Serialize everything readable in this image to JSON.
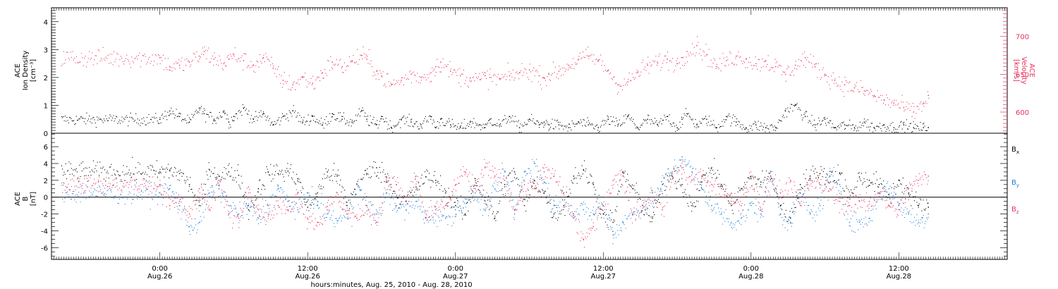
{
  "chart_data": [
    {
      "type": "scatter",
      "panel": "plasma",
      "ylabel_left": [
        "ACE",
        "Ion Density",
        "[cm⁻³]"
      ],
      "ylabel_right": [
        "ACE",
        "Velocity",
        "[km/s]"
      ],
      "ylim_left": [
        0,
        4.5
      ],
      "ylim_right": [
        572,
        738
      ],
      "yticks_left": [
        "0",
        "1",
        "2",
        "3",
        "4"
      ],
      "yticks_right": [
        "600",
        "650",
        "700"
      ],
      "colors": {
        "density": "#000000",
        "velocity": "#e8305a"
      },
      "series": [
        {
          "name": "Ion Density",
          "axis": "left",
          "x_hours": [
            0,
            4,
            8,
            12,
            16,
            18,
            22,
            26,
            28,
            30,
            34,
            38,
            42,
            46,
            50,
            54,
            58,
            62,
            66,
            70,
            74,
            78,
            82,
            84,
            88,
            90,
            94,
            98,
            102,
            106,
            110,
            112,
            114,
            118,
            122,
            126,
            130,
            132,
            134,
            138,
            142,
            146,
            150,
            154,
            156,
            158,
            162,
            166,
            170,
            174,
            178,
            182,
            186,
            190,
            194,
            198,
            202,
            206,
            210,
            212,
            214,
            218,
            222,
            226,
            230,
            234,
            238,
            242,
            246,
            250,
            254,
            258,
            262,
            266,
            270,
            274,
            278,
            282,
            286,
            290,
            294,
            298,
            302,
            306,
            310,
            312
          ],
          "values": [
            0.5,
            0.8,
            0.6,
            0.4,
            0.9,
            0.7,
            0.5,
            0.8,
            0.4,
            0.6,
            0.9,
            0.5,
            0.7,
            0.3,
            0.6,
            0.8,
            0.4,
            0.6,
            0.3,
            0.7,
            0.5,
            0.4,
            0.8,
            0.5,
            0.3,
            0.6,
            0.2,
            0.5,
            0.4,
            0.3,
            0.6,
            0.2,
            0.5,
            0.3,
            0.2,
            0.4,
            0.3,
            0.2,
            0.5,
            0.3,
            0.6,
            0.2,
            0.5,
            0.3,
            0.4,
            0.3,
            0.3,
            0.2,
            0.4,
            0.3,
            0.2,
            0.5,
            0.3,
            0.6,
            0.2,
            0.5,
            0.3,
            0.6,
            0.2,
            0.5,
            0.7,
            0.3,
            0.5,
            0.2,
            0.6,
            0.4,
            0.2,
            0.3,
            0.2,
            0.2,
            0.8,
            1.0,
            0.6,
            0.3,
            0.5,
            0.2,
            0.3,
            0.2,
            0.4,
            0.2,
            0.3,
            0.2,
            0.3,
            0.2,
            0.2,
            0.2
          ]
        },
        {
          "name": "Velocity",
          "axis": "right",
          "x_hours": [
            0,
            4,
            8,
            12,
            16,
            18,
            22,
            26,
            28,
            30,
            34,
            38,
            42,
            46,
            50,
            54,
            58,
            62,
            66,
            70,
            74,
            78,
            82,
            84,
            88,
            90,
            94,
            98,
            102,
            106,
            110,
            112,
            114,
            118,
            122,
            126,
            130,
            132,
            134,
            138,
            142,
            146,
            150,
            154,
            156,
            158,
            162,
            166,
            170,
            174,
            178,
            182,
            186,
            190,
            194,
            198,
            202,
            206,
            210,
            212,
            214,
            218,
            222,
            226,
            230,
            234,
            238,
            242,
            246,
            250,
            254,
            258,
            262,
            266,
            270,
            274,
            278,
            282,
            286,
            290,
            294,
            298,
            302,
            306,
            310,
            312
          ],
          "values": [
            672,
            660,
            662,
            666,
            674,
            680,
            670,
            664,
            670,
            676,
            668,
            662,
            672,
            658,
            642,
            636,
            646,
            638,
            652,
            666,
            660,
            668,
            675,
            670,
            654,
            648,
            636,
            642,
            650,
            646,
            652,
            660,
            666,
            654,
            648,
            645,
            643,
            648,
            646,
            644,
            648,
            652,
            656,
            648,
            645,
            650,
            654,
            662,
            670,
            674,
            668,
            655,
            636,
            640,
            652,
            662,
            666,
            670,
            664,
            672,
            680,
            688,
            676,
            660,
            668,
            674,
            670,
            664,
            668,
            660,
            650,
            662,
            672,
            660,
            650,
            642,
            636,
            632,
            628,
            622,
            616,
            612,
            606,
            600,
            612,
            622
          ]
        }
      ]
    },
    {
      "type": "scatter",
      "panel": "magnetic-field",
      "ylabel": [
        "ACE",
        "B",
        "[nT]"
      ],
      "ylim": [
        -7.4,
        7.6
      ],
      "yticks": [
        "-6",
        "-4",
        "-2",
        "0",
        "2",
        "4",
        "6"
      ],
      "zero_line": true,
      "series": [
        {
          "name": "Bx",
          "label_main": "B",
          "label_sub": "x",
          "color": "#000000",
          "x_hours": [
            0,
            4,
            8,
            12,
            16,
            20,
            24,
            28,
            32,
            36,
            40,
            44,
            48,
            52,
            56,
            60,
            64,
            68,
            72,
            76,
            80,
            84,
            88,
            92,
            96,
            100,
            104,
            108,
            112,
            116,
            120,
            124,
            128,
            132,
            136,
            140,
            144,
            148,
            152,
            156,
            160,
            164,
            168,
            172,
            176,
            180,
            184,
            188,
            192,
            196,
            200,
            204,
            208,
            212,
            216,
            220,
            224,
            228,
            232,
            236,
            240,
            244,
            248,
            252,
            256,
            260,
            264,
            268,
            272,
            276,
            280,
            284,
            288,
            292,
            296,
            300,
            304,
            308,
            312
          ],
          "values": [
            3,
            3.2,
            2.8,
            1.5,
            -1,
            3.3,
            2.5,
            3,
            2.6,
            -1.5,
            1,
            3,
            2.8,
            3.1,
            2.2,
            -1.2,
            0.5,
            3,
            2.5,
            -1,
            1.5,
            2.8,
            3.5,
            2.4,
            0,
            -0.5,
            1.2,
            2.4,
            2,
            0.5,
            -1,
            -2,
            2.2,
            0,
            -2.5,
            1.5,
            3,
            -1,
            2,
            0.5,
            -2,
            -1,
            2.5,
            3.2,
            1.5,
            -2,
            -3,
            3,
            1,
            -1,
            -2.5,
            1.5,
            2.5,
            1.5,
            -1,
            1.8,
            3.5,
            1.5,
            -1,
            1,
            2.2,
            1.8,
            2.5,
            -1,
            -2.5,
            1.5,
            2.5,
            2.8,
            2.5,
            2.8,
            0,
            2.4,
            2,
            1.5,
            0,
            2,
            0.5,
            -1,
            -1.2
          ]
        },
        {
          "name": "By",
          "label_main": "B",
          "label_sub": "y",
          "color": "#1e7fd8",
          "x_hours": [
            0,
            4,
            8,
            12,
            16,
            20,
            24,
            28,
            32,
            36,
            40,
            44,
            48,
            52,
            56,
            60,
            64,
            68,
            72,
            76,
            80,
            84,
            88,
            92,
            96,
            100,
            104,
            108,
            112,
            116,
            120,
            124,
            128,
            132,
            136,
            140,
            144,
            148,
            152,
            156,
            160,
            164,
            168,
            172,
            176,
            180,
            184,
            188,
            192,
            196,
            200,
            204,
            208,
            212,
            216,
            220,
            224,
            228,
            232,
            236,
            240,
            244,
            248,
            252,
            256,
            260,
            264,
            268,
            272,
            276,
            280,
            284,
            288,
            292,
            296,
            300,
            304,
            308,
            312
          ],
          "values": [
            0.5,
            1,
            -1,
            -3.5,
            -3,
            0.5,
            1,
            -1,
            -2,
            -1,
            -2.5,
            -1,
            1,
            -0.5,
            -1.5,
            0.5,
            -1,
            -2,
            -2.8,
            -2,
            1.5,
            -1,
            -2,
            0.5,
            -1,
            -1.5,
            -0.5,
            -2.4,
            -2,
            -2.5,
            -1.5,
            -0.2,
            0.5,
            -1.5,
            1,
            3,
            -2,
            3,
            4,
            1.8,
            -1,
            0.5,
            -2,
            -1.5,
            -2,
            -1,
            -4.5,
            -3,
            -2,
            -1,
            -0.5,
            1.5,
            3,
            4.8,
            3,
            1,
            -1,
            -2,
            -3,
            -2.5,
            -1,
            -2,
            3,
            -2,
            -3,
            0.5,
            -2,
            -1,
            2.5,
            1.5,
            -3,
            -3,
            -2.5,
            0.5,
            1,
            -1,
            -2,
            -3,
            -2
          ]
        },
        {
          "name": "Bz",
          "label_main": "B",
          "label_sub": "z",
          "color": "#e8305a",
          "x_hours": [
            0,
            4,
            8,
            12,
            16,
            20,
            24,
            28,
            32,
            36,
            40,
            44,
            48,
            52,
            56,
            60,
            64,
            68,
            72,
            76,
            80,
            84,
            88,
            92,
            96,
            100,
            104,
            108,
            112,
            116,
            120,
            124,
            128,
            132,
            136,
            140,
            144,
            148,
            152,
            156,
            160,
            164,
            168,
            172,
            176,
            180,
            184,
            188,
            192,
            196,
            200,
            204,
            208,
            212,
            216,
            220,
            224,
            228,
            232,
            236,
            240,
            244,
            248,
            252,
            256,
            260,
            264,
            268,
            272,
            276,
            280,
            284,
            288,
            292,
            296,
            300,
            304,
            308,
            312
          ],
          "values": [
            1.5,
            -1,
            -0.5,
            -2,
            1,
            -1.5,
            2,
            -2,
            -2.5,
            1.2,
            -1.5,
            -2,
            -1,
            -1.5,
            0.5,
            -2.5,
            -3,
            -1.5,
            0.5,
            -2,
            -2.5,
            -1,
            -3,
            2,
            1.5,
            -0.5,
            2.5,
            -2.5,
            -1.5,
            -1,
            1.5,
            3,
            1,
            3.5,
            2.5,
            2,
            -1.5,
            1.5,
            1,
            3,
            2.5,
            0.5,
            -2.5,
            -5,
            -3.5,
            -1,
            2,
            2.5,
            -2,
            -1,
            0.5,
            -1.5,
            2.5,
            3.5,
            2,
            2.5,
            1.5,
            1,
            -0.5,
            -1,
            2.5,
            -1.5,
            2.5,
            0.5,
            2,
            -1,
            2,
            1.5,
            1,
            -0.5,
            -1,
            -0.5,
            -0.5,
            0.5,
            -1,
            -1.5,
            1,
            2,
            2.5
          ]
        }
      ]
    }
  ],
  "x_axis": {
    "label": "hours:minutes, Aug. 25, 2010 - Aug. 28, 2010",
    "start_hour": -44,
    "end_hour": 344,
    "minor_tick_hours": 1,
    "major_ticks": [
      {
        "hour": 0,
        "time": "0:00",
        "date": "Aug.26"
      },
      {
        "hour": 60,
        "time": "12:00",
        "date": "Aug.26"
      },
      {
        "hour": 120,
        "time": "0:00",
        "date": "Aug.27"
      },
      {
        "hour": 180,
        "time": "12:00",
        "date": "Aug.27"
      },
      {
        "hour": 240,
        "time": "0:00",
        "date": "Aug.28"
      },
      {
        "hour": 300,
        "time": "12:00",
        "date": "Aug.28"
      }
    ]
  }
}
